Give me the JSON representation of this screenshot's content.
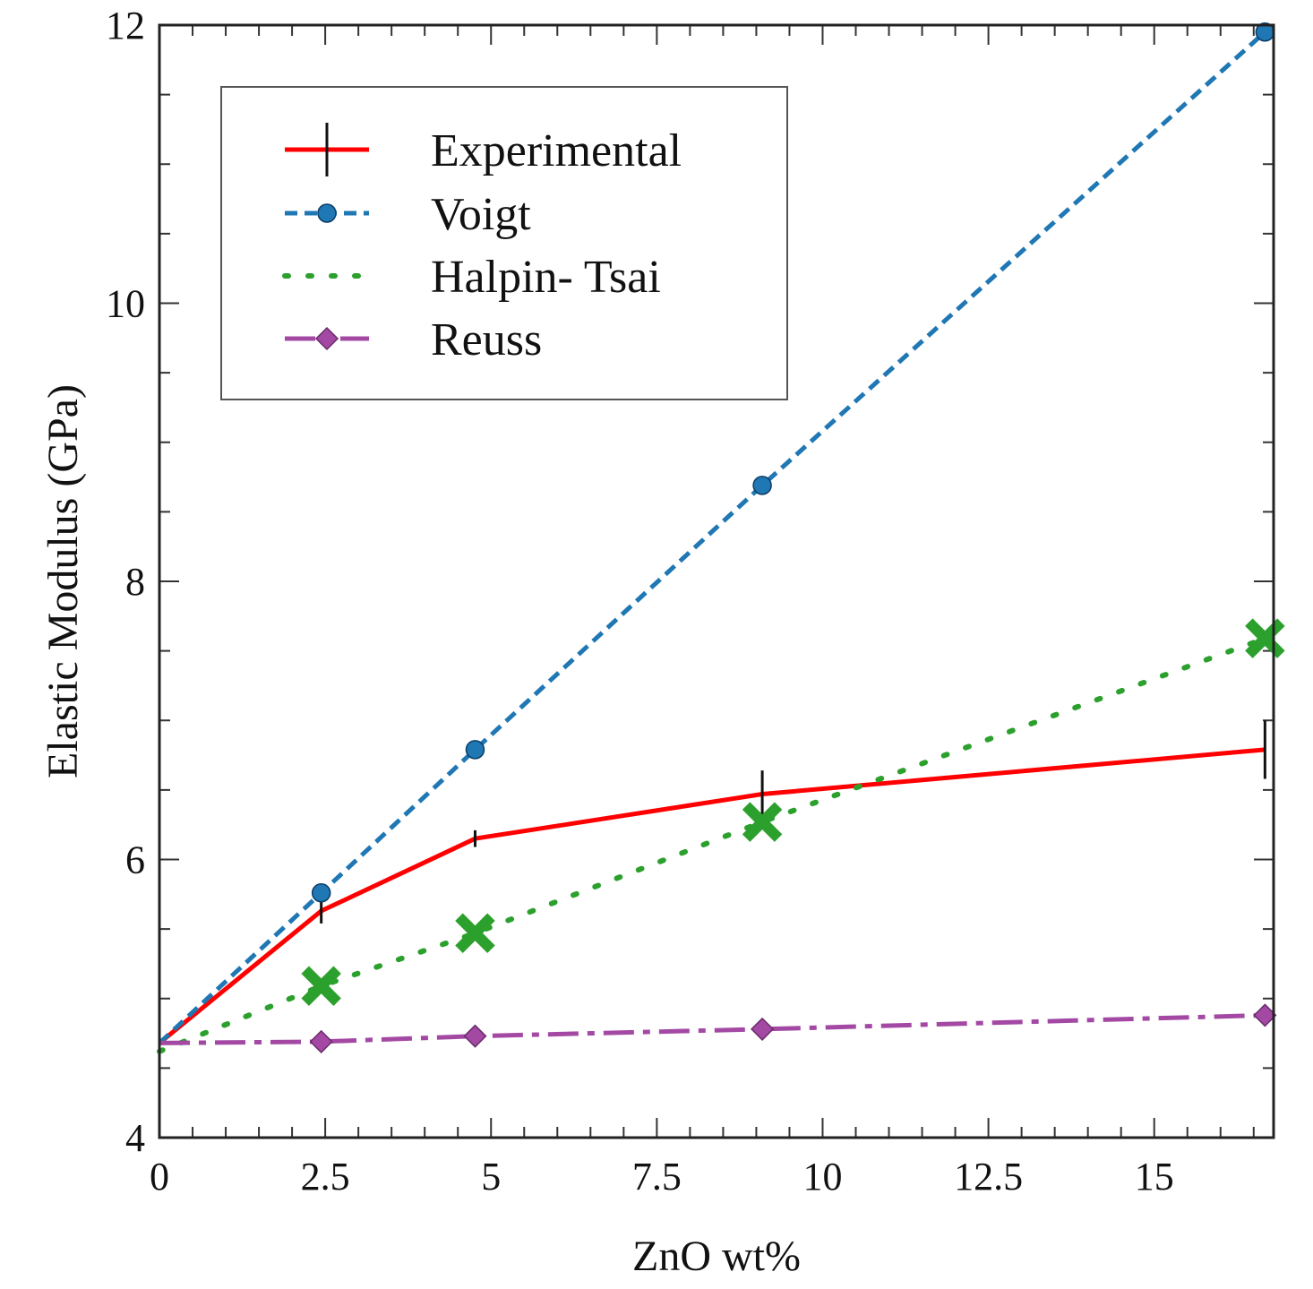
{
  "chart_data": {
    "type": "line",
    "xlabel": "ZnO wt%",
    "ylabel": "Elastic Modulus (GPa)",
    "xlim": [
      0,
      16.8
    ],
    "ylim": [
      4,
      12
    ],
    "x_ticks": [
      0,
      2.5,
      5,
      7.5,
      10,
      12.5,
      15
    ],
    "x_tick_labels": [
      "0",
      "2.5",
      "5",
      "7.5",
      "10",
      "12.5",
      "15"
    ],
    "y_ticks": [
      4,
      6,
      8,
      10,
      12
    ],
    "y_tick_labels": [
      "4",
      "6",
      "8",
      "10",
      "12"
    ],
    "legend_position": "top-left",
    "series": [
      {
        "name": "Experimental",
        "color": "#ff0000",
        "line": "solid",
        "marker": "errorbar",
        "x": [
          0,
          2.44,
          4.76,
          9.09,
          16.67
        ],
        "values": [
          4.68,
          5.63,
          6.15,
          6.47,
          6.79
        ],
        "errors": [
          0.0,
          0.09,
          0.06,
          0.17,
          0.21
        ]
      },
      {
        "name": "Voigt",
        "color": "#1f77b4",
        "line": "dashed",
        "marker": "circle",
        "x": [
          0,
          2.44,
          4.76,
          9.09,
          16.67
        ],
        "values": [
          4.68,
          5.76,
          6.79,
          8.69,
          11.95
        ]
      },
      {
        "name": "Halpin- Tsai",
        "color": "#2ca02c",
        "line": "dotted",
        "marker": "x",
        "x": [
          0,
          2.44,
          4.76,
          9.09,
          16.67
        ],
        "values": [
          4.62,
          5.09,
          5.47,
          6.27,
          7.59
        ]
      },
      {
        "name": "Reuss",
        "color": "#a349a4",
        "line": "dashdot",
        "marker": "diamond",
        "x": [
          0,
          2.44,
          4.76,
          9.09,
          16.67
        ],
        "values": [
          4.68,
          4.69,
          4.73,
          4.78,
          4.88
        ]
      }
    ]
  }
}
